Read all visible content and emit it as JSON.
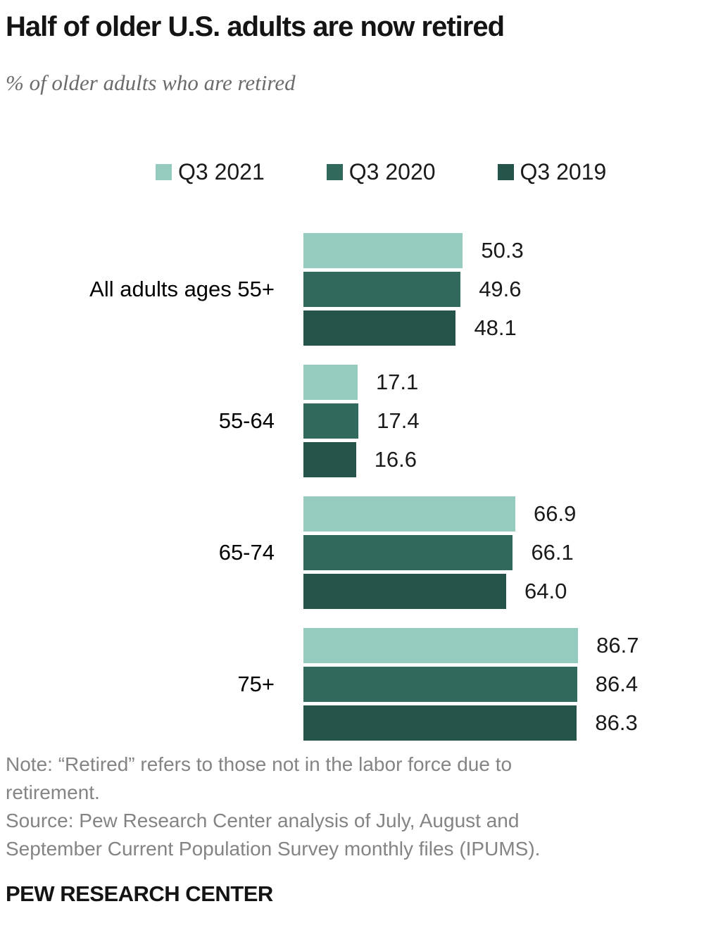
{
  "header": {
    "title": "Half of older U.S. adults are now retired",
    "subtitle": "% of older adults who are retired"
  },
  "chart_data": {
    "type": "bar",
    "orientation": "horizontal",
    "title": "Half of older U.S. adults are now retired",
    "subtitle": "% of older adults who are retired",
    "unit": "percent of older adults who are retired",
    "xlim": [
      0,
      100
    ],
    "grid": false,
    "legend_position": "top",
    "data_labels": true,
    "categories": [
      "All adults ages 55+",
      "55-64",
      "65-74",
      "75+"
    ],
    "series": [
      {
        "name": "Q3 2021",
        "color": "#94cbbe",
        "values": [
          50.3,
          17.1,
          66.9,
          86.7
        ],
        "labels": [
          "50.3",
          "17.1",
          "66.9",
          "86.7"
        ]
      },
      {
        "name": "Q3 2020",
        "color": "#32695d",
        "values": [
          49.6,
          17.4,
          66.1,
          86.4
        ],
        "labels": [
          "49.6",
          "17.4",
          "66.1",
          "86.4"
        ]
      },
      {
        "name": "Q3 2019",
        "color": "#25544a",
        "values": [
          48.1,
          16.6,
          64.0,
          86.3
        ],
        "labels": [
          "48.1",
          "16.6",
          "64.0",
          "86.3"
        ]
      }
    ]
  },
  "notes": {
    "note_lines": [
      "Note: “Retired” refers to those not in the labor force due to",
      "retirement."
    ],
    "source_lines": [
      "Source: Pew Research Center analysis of July, August and",
      "September Current Population Survey monthly files (IPUMS)."
    ]
  },
  "footer": {
    "brand": "PEW RESEARCH CENTER"
  }
}
